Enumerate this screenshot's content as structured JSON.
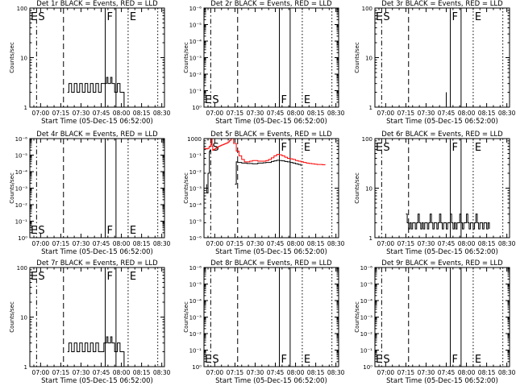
{
  "x_label": "Start Time (05-Dec-15 06:52:00)",
  "y_label": "Counts/sec",
  "x_ticks": [
    "07:00",
    "07:15",
    "07:30",
    "07:45",
    "08:00",
    "08:15",
    "08:30"
  ],
  "colors": {
    "events": "#000000",
    "lld": "#ff0000",
    "axis": "#000000"
  },
  "chart_data": [
    {
      "type": "line",
      "title": "Det 1r BLACK = Events, RED = LLD",
      "x_unit": "minutes after 06:52:00",
      "xlim": [
        0,
        100
      ],
      "yscale": "log",
      "ylim": [
        1,
        100
      ],
      "y_ticks": [
        {
          "v": 1,
          "t": "1"
        },
        {
          "v": 10,
          "t": "10"
        },
        {
          "v": 100,
          "t": "100"
        }
      ],
      "markers": [
        {
          "x": 5,
          "style": "dashdot",
          "label": "S"
        },
        {
          "x": 25,
          "style": "dashed",
          "label": ""
        },
        {
          "x": 56,
          "style": "solid",
          "label": "F"
        },
        {
          "x": 64,
          "style": "solid",
          "label": ""
        },
        {
          "x": 73,
          "style": "dotted",
          "label": "E"
        },
        {
          "x": 95,
          "style": "dotted",
          "label": ""
        }
      ],
      "edge_labels": [
        {
          "side": "left",
          "label": "E"
        }
      ],
      "label_pos": "top",
      "series": [
        {
          "color": "events",
          "x": [
            28,
            29,
            31,
            33,
            35,
            37,
            39,
            41,
            43,
            45,
            47,
            49,
            51,
            53,
            55,
            57,
            58,
            60,
            61,
            63,
            65,
            67,
            69,
            70
          ],
          "y": [
            2,
            3,
            2,
            3,
            2,
            3,
            2,
            3,
            2,
            3,
            2,
            3,
            2,
            3,
            3,
            4,
            3,
            4,
            3,
            2,
            3,
            2,
            2,
            1
          ]
        }
      ]
    },
    {
      "type": "line",
      "title": "Det 2r BLACK = Events, RED = LLD",
      "x_unit": "minutes after 06:52:00",
      "xlim": [
        0,
        100
      ],
      "yscale": "log",
      "ylim": [
        1,
        1000000
      ],
      "y_ticks": [
        {
          "v": 1,
          "t": "10⁰"
        },
        {
          "v": 10,
          "t": "10⁻¹"
        },
        {
          "v": 100,
          "t": "10⁻²"
        },
        {
          "v": 1000,
          "t": "10⁻³"
        },
        {
          "v": 10000,
          "t": "10⁻⁴"
        },
        {
          "v": 100000,
          "t": "10⁻⁵"
        },
        {
          "v": 1000000,
          "t": "10⁻⁶"
        }
      ],
      "markers": [
        {
          "x": 5,
          "style": "dashdot",
          "label": "S"
        },
        {
          "x": 25,
          "style": "dashed",
          "label": ""
        },
        {
          "x": 56,
          "style": "solid",
          "label": "F"
        },
        {
          "x": 64,
          "style": "solid",
          "label": ""
        },
        {
          "x": 73,
          "style": "dotted",
          "label": "E"
        },
        {
          "x": 95,
          "style": "dotted",
          "label": ""
        }
      ],
      "edge_labels": [
        {
          "side": "left",
          "label": "E"
        }
      ],
      "label_pos": "bottom",
      "series": []
    },
    {
      "type": "line",
      "title": "Det 3r BLACK = Events, RED = LLD",
      "x_unit": "minutes after 06:52:00",
      "xlim": [
        0,
        100
      ],
      "yscale": "log",
      "ylim": [
        1,
        100
      ],
      "y_ticks": [
        {
          "v": 1,
          "t": "1"
        },
        {
          "v": 10,
          "t": "10"
        },
        {
          "v": 100,
          "t": "100"
        }
      ],
      "markers": [
        {
          "x": 5,
          "style": "dashdot",
          "label": "S"
        },
        {
          "x": 25,
          "style": "dashed",
          "label": ""
        },
        {
          "x": 56,
          "style": "solid",
          "label": "F"
        },
        {
          "x": 64,
          "style": "solid",
          "label": ""
        },
        {
          "x": 73,
          "style": "dotted",
          "label": "E"
        },
        {
          "x": 95,
          "style": "dotted",
          "label": ""
        }
      ],
      "edge_labels": [
        {
          "side": "left",
          "label": "E"
        }
      ],
      "label_pos": "top",
      "series": [
        {
          "color": "events",
          "x": [
            53,
            53,
            53
          ],
          "y": [
            1,
            2,
            1
          ]
        }
      ]
    },
    {
      "type": "line",
      "title": "Det 4r BLACK = Events, RED = LLD",
      "x_unit": "minutes after 06:52:00",
      "xlim": [
        0,
        100
      ],
      "yscale": "log",
      "ylim": [
        1,
        1000000
      ],
      "y_ticks": [
        {
          "v": 1,
          "t": "10⁰"
        },
        {
          "v": 10,
          "t": "10⁻¹"
        },
        {
          "v": 100,
          "t": "10⁻²"
        },
        {
          "v": 1000,
          "t": "10⁻³"
        },
        {
          "v": 10000,
          "t": "10⁻⁴"
        },
        {
          "v": 100000,
          "t": "10⁻⁵"
        },
        {
          "v": 1000000,
          "t": "10⁻⁶"
        }
      ],
      "markers": [
        {
          "x": 5,
          "style": "dashdot",
          "label": "S"
        },
        {
          "x": 25,
          "style": "dashed",
          "label": ""
        },
        {
          "x": 56,
          "style": "solid",
          "label": "F"
        },
        {
          "x": 64,
          "style": "solid",
          "label": ""
        },
        {
          "x": 73,
          "style": "dotted",
          "label": "E"
        },
        {
          "x": 95,
          "style": "dotted",
          "label": ""
        }
      ],
      "edge_labels": [
        {
          "side": "left",
          "label": "E"
        }
      ],
      "label_pos": "bottom",
      "series": []
    },
    {
      "type": "line",
      "title": "Det 5r BLACK = Events, RED = LLD",
      "x_unit": "minutes after 06:52:00",
      "xlim": [
        0,
        100
      ],
      "yscale": "log",
      "ylim": [
        10,
        1000
      ],
      "y_ticks": [
        {
          "v": 10,
          "t": "10⁻⁶"
        },
        {
          "v": 21.5,
          "t": "10⁻⁵"
        },
        {
          "v": 46.4,
          "t": "10⁻⁴"
        },
        {
          "v": 100,
          "t": "10⁻³"
        },
        {
          "v": 215,
          "t": "10⁻²"
        },
        {
          "v": 464,
          "t": "10⁻¹"
        },
        {
          "v": 1000,
          "t": "1000"
        }
      ],
      "markers": [
        {
          "x": 5,
          "style": "dashdot",
          "label": "S"
        },
        {
          "x": 25,
          "style": "dashed",
          "label": ""
        },
        {
          "x": 56,
          "style": "solid",
          "label": "F"
        },
        {
          "x": 64,
          "style": "solid",
          "label": ""
        },
        {
          "x": 73,
          "style": "dotted",
          "label": "E"
        },
        {
          "x": 95,
          "style": "dotted",
          "label": ""
        }
      ],
      "edge_labels": [],
      "label_pos": "top",
      "series": [
        {
          "color": "lld",
          "x": [
            0,
            1,
            2,
            3,
            4,
            5,
            5.5,
            6,
            6.5,
            7,
            8,
            9,
            10,
            11,
            12,
            13,
            14,
            15,
            16,
            17,
            18,
            19,
            20,
            20.5
          ],
          "y": [
            640,
            630,
            620,
            640,
            700,
            760,
            1000,
            700,
            580,
            600,
            620,
            650,
            680,
            700,
            720,
            740,
            760,
            780,
            800,
            820,
            860,
            920,
            980,
            1000
          ]
        },
        {
          "color": "lld",
          "x": [
            21,
            22,
            24,
            26,
            28,
            30,
            32,
            34,
            36,
            38,
            40,
            42,
            44,
            46,
            48,
            50,
            52,
            54,
            56,
            58,
            60,
            62,
            64,
            66,
            68,
            70,
            72,
            74,
            76,
            78,
            80,
            82,
            84,
            86,
            88,
            90
          ],
          "y": [
            1000,
            800,
            560,
            450,
            380,
            340,
            340,
            350,
            360,
            360,
            350,
            350,
            350,
            360,
            380,
            410,
            450,
            480,
            470,
            450,
            420,
            400,
            390,
            380,
            360,
            350,
            340,
            330,
            320,
            315,
            310,
            305,
            300,
            300,
            296,
            295
          ]
        },
        {
          "color": "events",
          "x": [
            2,
            2,
            3,
            3,
            4,
            4,
            4.5
          ],
          "y": [
            120,
            80,
            120,
            200,
            340,
            550,
            600
          ]
        },
        {
          "color": "events",
          "x": [
            23,
            24,
            25,
            26,
            28,
            30,
            32,
            34,
            36,
            38,
            40,
            42,
            44,
            46,
            48,
            50,
            52,
            54,
            56,
            58,
            60,
            62,
            64,
            66,
            68,
            70,
            72
          ],
          "y": [
            120,
            340,
            330,
            330,
            320,
            320,
            315,
            315,
            310,
            310,
            320,
            320,
            325,
            330,
            330,
            345,
            355,
            365,
            360,
            355,
            345,
            340,
            330,
            320,
            310,
            300,
            280
          ]
        }
      ]
    },
    {
      "type": "line",
      "title": "Det 6r BLACK = Events, RED = LLD",
      "x_unit": "minutes after 06:52:00",
      "xlim": [
        0,
        100
      ],
      "yscale": "log",
      "ylim": [
        1,
        100
      ],
      "y_ticks": [
        {
          "v": 1,
          "t": "1"
        },
        {
          "v": 10,
          "t": "10"
        },
        {
          "v": 100,
          "t": "100"
        }
      ],
      "markers": [
        {
          "x": 5,
          "style": "dashdot",
          "label": "S"
        },
        {
          "x": 25,
          "style": "dashed",
          "label": ""
        },
        {
          "x": 56,
          "style": "solid",
          "label": "F"
        },
        {
          "x": 64,
          "style": "solid",
          "label": ""
        },
        {
          "x": 73,
          "style": "dotted",
          "label": "E"
        },
        {
          "x": 95,
          "style": "dotted",
          "label": ""
        }
      ],
      "edge_labels": [
        {
          "side": "left",
          "label": "E"
        }
      ],
      "label_pos": "top",
      "series": [
        {
          "color": "events",
          "x": [
            23,
            24,
            25,
            26,
            27,
            28,
            29,
            30,
            31,
            32,
            33,
            34,
            35,
            36,
            37,
            38,
            39,
            40,
            41,
            42,
            43,
            44,
            45,
            46,
            47,
            48,
            49,
            50,
            51,
            52,
            53,
            54,
            55,
            56,
            57,
            58,
            59,
            60,
            61,
            62,
            63,
            64,
            65,
            66,
            67,
            68,
            69,
            70,
            71,
            72,
            73,
            74,
            75,
            76,
            77,
            78,
            79,
            80,
            81,
            82,
            83,
            84,
            85
          ],
          "y": [
            3,
            2,
            1.5,
            2,
            1.5,
            2,
            2,
            1.5,
            2,
            3,
            2,
            1.5,
            2,
            1.5,
            2,
            2,
            1.5,
            2,
            3,
            2,
            1.5,
            2,
            2,
            1.5,
            2,
            3,
            2,
            1.5,
            2,
            2,
            1.5,
            2,
            2,
            3,
            2,
            1.5,
            2,
            1.5,
            2,
            2,
            3,
            2,
            1.5,
            2,
            2,
            3,
            2,
            1.5,
            2,
            2,
            1.5,
            2,
            3,
            2,
            1.5,
            2,
            2,
            1.5,
            2,
            2,
            1.5,
            2,
            1.5
          ]
        }
      ]
    },
    {
      "type": "line",
      "title": "Det 7r BLACK = Events, RED = LLD",
      "x_unit": "minutes after 06:52:00",
      "xlim": [
        0,
        100
      ],
      "yscale": "log",
      "ylim": [
        1,
        100
      ],
      "y_ticks": [
        {
          "v": 1,
          "t": "1"
        },
        {
          "v": 10,
          "t": "10"
        },
        {
          "v": 100,
          "t": "100"
        }
      ],
      "markers": [
        {
          "x": 5,
          "style": "dashdot",
          "label": "S"
        },
        {
          "x": 25,
          "style": "dashed",
          "label": ""
        },
        {
          "x": 56,
          "style": "solid",
          "label": "F"
        },
        {
          "x": 64,
          "style": "solid",
          "label": ""
        },
        {
          "x": 73,
          "style": "dotted",
          "label": "E"
        },
        {
          "x": 95,
          "style": "dotted",
          "label": ""
        }
      ],
      "edge_labels": [
        {
          "side": "left",
          "label": "E"
        }
      ],
      "label_pos": "top",
      "series": [
        {
          "color": "events",
          "x": [
            28,
            29,
            31,
            33,
            35,
            37,
            39,
            41,
            43,
            45,
            47,
            49,
            51,
            53,
            55,
            57,
            58,
            60,
            61,
            63,
            65,
            67,
            69,
            70
          ],
          "y": [
            2,
            3,
            2,
            3,
            2,
            3,
            2,
            3,
            2,
            3,
            2,
            3,
            2,
            2,
            3,
            4,
            3,
            4,
            3,
            2,
            3,
            2,
            2,
            1
          ]
        }
      ]
    },
    {
      "type": "line",
      "title": "Det 8r BLACK = Events, RED = LLD",
      "x_unit": "minutes after 06:52:00",
      "xlim": [
        0,
        100
      ],
      "yscale": "log",
      "ylim": [
        1,
        1000000
      ],
      "y_ticks": [
        {
          "v": 1,
          "t": "10⁰"
        },
        {
          "v": 10,
          "t": "10⁻¹"
        },
        {
          "v": 100,
          "t": "10⁻²"
        },
        {
          "v": 1000,
          "t": "10⁻³"
        },
        {
          "v": 10000,
          "t": "10⁻⁴"
        },
        {
          "v": 100000,
          "t": "10⁻⁵"
        },
        {
          "v": 1000000,
          "t": "10⁻⁶"
        }
      ],
      "markers": [
        {
          "x": 5,
          "style": "dashdot",
          "label": "S"
        },
        {
          "x": 25,
          "style": "dashed",
          "label": ""
        },
        {
          "x": 56,
          "style": "solid",
          "label": "F"
        },
        {
          "x": 64,
          "style": "solid",
          "label": ""
        },
        {
          "x": 73,
          "style": "dotted",
          "label": "E"
        },
        {
          "x": 95,
          "style": "dotted",
          "label": ""
        }
      ],
      "edge_labels": [
        {
          "side": "left",
          "label": "E"
        }
      ],
      "label_pos": "bottom",
      "series": []
    },
    {
      "type": "line",
      "title": "Det 9r BLACK = Events, RED = LLD",
      "x_unit": "minutes after 06:52:00",
      "xlim": [
        0,
        100
      ],
      "yscale": "log",
      "ylim": [
        1,
        1000000
      ],
      "y_ticks": [
        {
          "v": 1,
          "t": "10⁰"
        },
        {
          "v": 10,
          "t": "10⁻¹"
        },
        {
          "v": 100,
          "t": "10⁻²"
        },
        {
          "v": 1000,
          "t": "10⁻³"
        },
        {
          "v": 10000,
          "t": "10⁻⁴"
        },
        {
          "v": 100000,
          "t": "10⁻⁵"
        },
        {
          "v": 1000000,
          "t": "10⁻⁶"
        }
      ],
      "markers": [
        {
          "x": 5,
          "style": "dashdot",
          "label": "S"
        },
        {
          "x": 25,
          "style": "dashed",
          "label": ""
        },
        {
          "x": 56,
          "style": "solid",
          "label": "F"
        },
        {
          "x": 64,
          "style": "solid",
          "label": ""
        },
        {
          "x": 73,
          "style": "dotted",
          "label": "E"
        },
        {
          "x": 95,
          "style": "dotted",
          "label": ""
        }
      ],
      "edge_labels": [
        {
          "side": "left",
          "label": "E"
        }
      ],
      "label_pos": "bottom",
      "series": []
    }
  ]
}
